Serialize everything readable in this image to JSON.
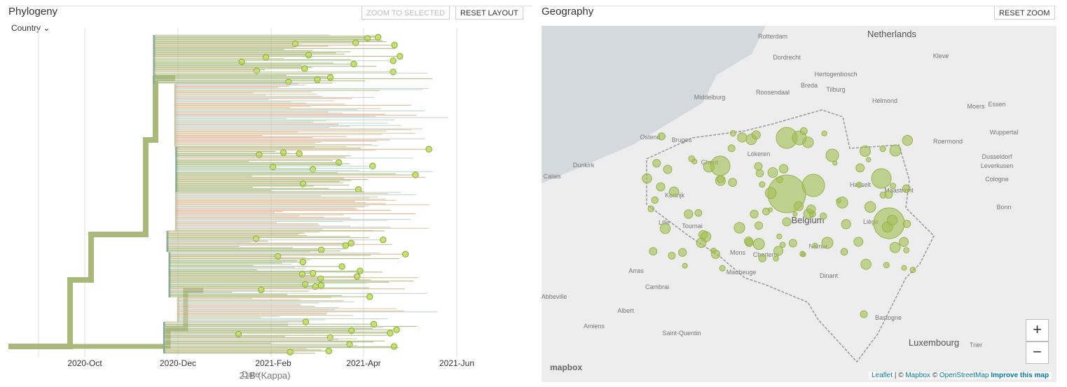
{
  "phylogeny": {
    "title": "Phylogeny",
    "buttons": [
      "ZOOM TO SELECTED",
      "RESET LAYOUT"
    ],
    "color_by": "Country",
    "axis_labels": [
      "2020-Oct",
      "2020-Dec",
      "2021-Feb",
      "2021-Apr",
      "2021-Jun"
    ],
    "axis_title": "Date",
    "clade_label": "21B (Kappa)"
  },
  "geography": {
    "title": "Geography",
    "button": "RESET ZOOM",
    "zoom_in": "+",
    "zoom_out": "−",
    "logo": "mapbox",
    "labels": [
      "Rotterdam",
      "Dordrecht",
      "Netherlands",
      "Hertogenbosch",
      "Breda",
      "Tilburg",
      "Middelburg",
      "Roosendaal",
      "Helmond",
      "Kleve",
      "Moers",
      "Essen",
      "Wuppertal",
      "Dusseldorf",
      "Roermond",
      "Ostend",
      "Bruges",
      "Dunkirk",
      "Calais",
      "Ghent",
      "Lokeren",
      "Leverkusen",
      "Cologne",
      "Bonn",
      "Liège",
      "Belgium",
      "Lille",
      "Tournai",
      "Mons",
      "Charleroi",
      "Namur",
      "Maubeuge",
      "Arras",
      "Cambrai",
      "Albert",
      "Amiens",
      "Saint-Quentin",
      "Luxembourg",
      "Trier",
      "Abbeville",
      "Dinant",
      "Bastogne",
      "Maastricht",
      "Kortrijk",
      "Hasselt"
    ],
    "attribution": {
      "leaflet": "Leaflet",
      "sep": "| ©",
      "mapbox": "Mapbox",
      "copy": "©",
      "osm": "OpenStreetMap",
      "improve": "Improve this map"
    }
  }
}
